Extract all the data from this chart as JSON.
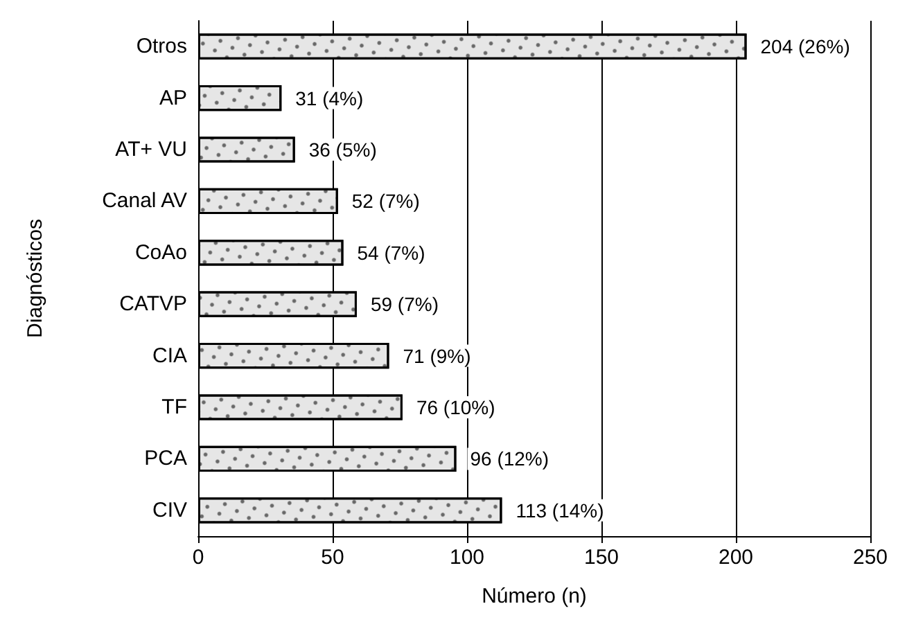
{
  "chart_data": {
    "type": "bar",
    "orientation": "horizontal",
    "xlabel": "Número (n)",
    "ylabel": "Diagnósticos",
    "categories": [
      "Otros",
      "AP",
      "AT+ VU",
      "Canal AV",
      "CoAo",
      "CATVP",
      "CIA",
      "TF",
      "PCA",
      "CIV"
    ],
    "values": [
      204,
      31,
      36,
      52,
      54,
      59,
      71,
      76,
      96,
      113
    ],
    "value_labels": [
      "204 (26%)",
      "31 (4%)",
      "36 (5%)",
      "52 (7%)",
      "54 (7%)",
      "59 (7%)",
      "71 (9%)",
      "76 (10%)",
      "96 (12%)",
      "113 (14%)"
    ],
    "color": "#e6e6e6",
    "xlim": [
      0,
      250
    ],
    "xticks": [
      0,
      50,
      100,
      150,
      200,
      250
    ],
    "grid": "x"
  }
}
